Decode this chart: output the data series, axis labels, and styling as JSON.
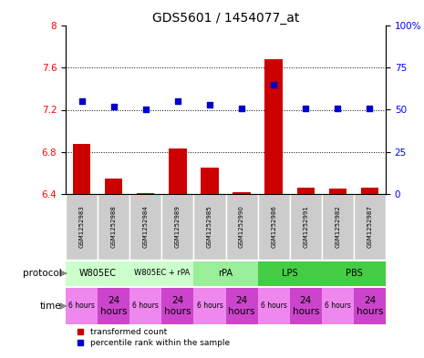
{
  "title": "GDS5601 / 1454077_at",
  "samples": [
    "GSM1252983",
    "GSM1252988",
    "GSM1252984",
    "GSM1252989",
    "GSM1252985",
    "GSM1252990",
    "GSM1252986",
    "GSM1252991",
    "GSM1252982",
    "GSM1252987"
  ],
  "transformed_count": [
    6.88,
    6.55,
    6.41,
    6.83,
    6.65,
    6.42,
    7.68,
    6.46,
    6.45,
    6.46
  ],
  "percentile_rank": [
    55,
    52,
    50,
    55,
    53,
    51,
    65,
    51,
    51,
    51
  ],
  "ylim_left": [
    6.4,
    8.0
  ],
  "ylim_right": [
    0,
    100
  ],
  "yticks_left": [
    6.4,
    6.8,
    7.2,
    7.6,
    8.0
  ],
  "yticks_right": [
    0,
    25,
    50,
    75,
    100
  ],
  "ytick_labels_left": [
    "6.4",
    "6.8",
    "7.2",
    "7.6",
    "8"
  ],
  "ytick_labels_right": [
    "0",
    "25",
    "50",
    "75",
    "100%"
  ],
  "protocol_groups": [
    {
      "label": "W805EC",
      "start": 0,
      "end": 2,
      "color": "#ccffcc"
    },
    {
      "label": "W805EC + rPA",
      "start": 2,
      "end": 4,
      "color": "#ccffcc"
    },
    {
      "label": "rPA",
      "start": 4,
      "end": 6,
      "color": "#99ee99"
    },
    {
      "label": "LPS",
      "start": 6,
      "end": 8,
      "color": "#44cc44"
    },
    {
      "label": "PBS",
      "start": 8,
      "end": 10,
      "color": "#44cc44"
    }
  ],
  "time_labels": [
    "6 hours",
    "24\nhours",
    "6 hours",
    "24\nhours",
    "6 hours",
    "24\nhours",
    "6 hours",
    "24\nhours",
    "6 hours",
    "24\nhours"
  ],
  "time_colors": [
    "#ee88ee",
    "#cc44cc",
    "#ee88ee",
    "#cc44cc",
    "#ee88ee",
    "#cc44cc",
    "#ee88ee",
    "#cc44cc",
    "#ee88ee",
    "#cc44cc"
  ],
  "bar_color": "#cc0000",
  "dot_color": "#0000cc",
  "sample_bg": "#cccccc",
  "bg_color": "#ffffff",
  "arrow_color": "#888888",
  "legend_label_bar": "transformed count",
  "legend_label_dot": "percentile rank within the sample"
}
